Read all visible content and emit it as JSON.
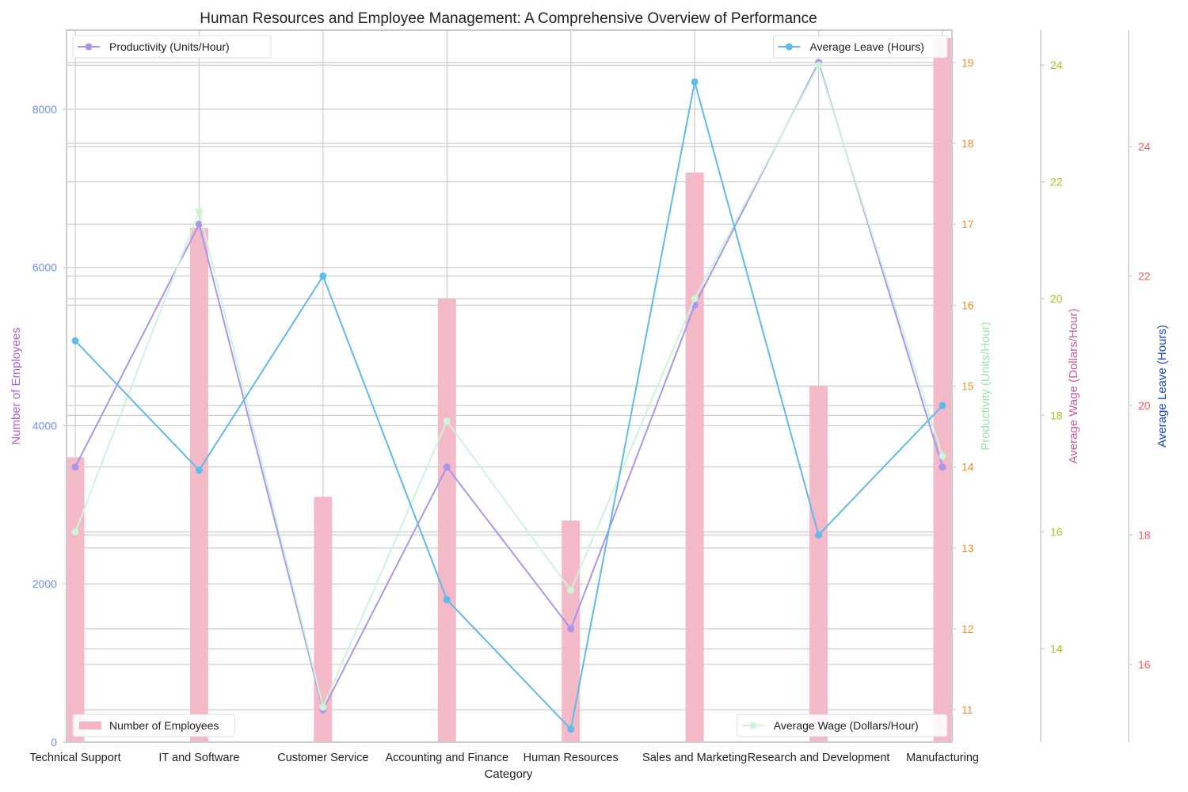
{
  "chart_data": {
    "type": "bar",
    "title": "Human Resources and Employee Management: A Comprehensive Overview of Performance",
    "xlabel": "Category",
    "categories": [
      "Technical Support",
      "IT and Software",
      "Customer Service",
      "Accounting and Finance",
      "Human Resources",
      "Sales and Marketing",
      "Research and Development",
      "Manufacturing"
    ],
    "axes": {
      "employees": {
        "label": "Number of Employees",
        "ylim": [
          0,
          9000
        ],
        "ticks": [
          0,
          2000,
          4000,
          6000,
          8000
        ],
        "label_color": "#b05fd6",
        "tick_color": "#6f8ff5"
      },
      "productivity": {
        "label": "Productivity (Units/Hour)",
        "ylim": [
          10.6,
          19.4
        ],
        "ticks": [
          11,
          12,
          13,
          14,
          15,
          16,
          17,
          18,
          19
        ],
        "label_color": "#97e6a6",
        "tick_color": "#f08f2a"
      },
      "wage": {
        "label": "Average Wage (Dollars/Hour)",
        "ylim": [
          12.4,
          24.6
        ],
        "ticks": [
          14,
          16,
          18,
          20,
          22,
          24
        ],
        "label_color": "#cf5d97",
        "tick_color": "#9ec41a"
      },
      "leave": {
        "label": "Average Leave (Hours)",
        "ylim": [
          14.8,
          25.8
        ],
        "ticks": [
          16,
          18,
          20,
          22,
          24
        ],
        "label_color": "#1447d6",
        "tick_color": "#f05a5a"
      }
    },
    "series": [
      {
        "name": "Number of Employees",
        "kind": "bar",
        "axis": "employees",
        "color": "#f4b6c5",
        "values": [
          3600,
          6500,
          3100,
          5600,
          2800,
          7200,
          4500,
          8900
        ]
      },
      {
        "name": "Productivity (Units/Hour)",
        "kind": "line",
        "axis": "productivity",
        "color": "#a897ec",
        "values": [
          14,
          17,
          11,
          14,
          12,
          16,
          19,
          14
        ]
      },
      {
        "name": "Average Wage (Dollars/Hour)",
        "kind": "line",
        "axis": "wage",
        "color": "#cdf4d8",
        "values": [
          16,
          21.5,
          13,
          17.9,
          15,
          20,
          24,
          17.3
        ]
      },
      {
        "name": "Average Leave (Hours)",
        "kind": "line",
        "axis": "leave",
        "color": "#62b9ec",
        "values": [
          21,
          19,
          22,
          17,
          15,
          25,
          18,
          20
        ]
      }
    ],
    "legends": {
      "top_left": "Productivity (Units/Hour)",
      "top_right": "Average Leave (Hours)",
      "bottom_left": "Number of Employees",
      "bottom_right": "Average Wage (Dollars/Hour)"
    },
    "grid": true
  }
}
